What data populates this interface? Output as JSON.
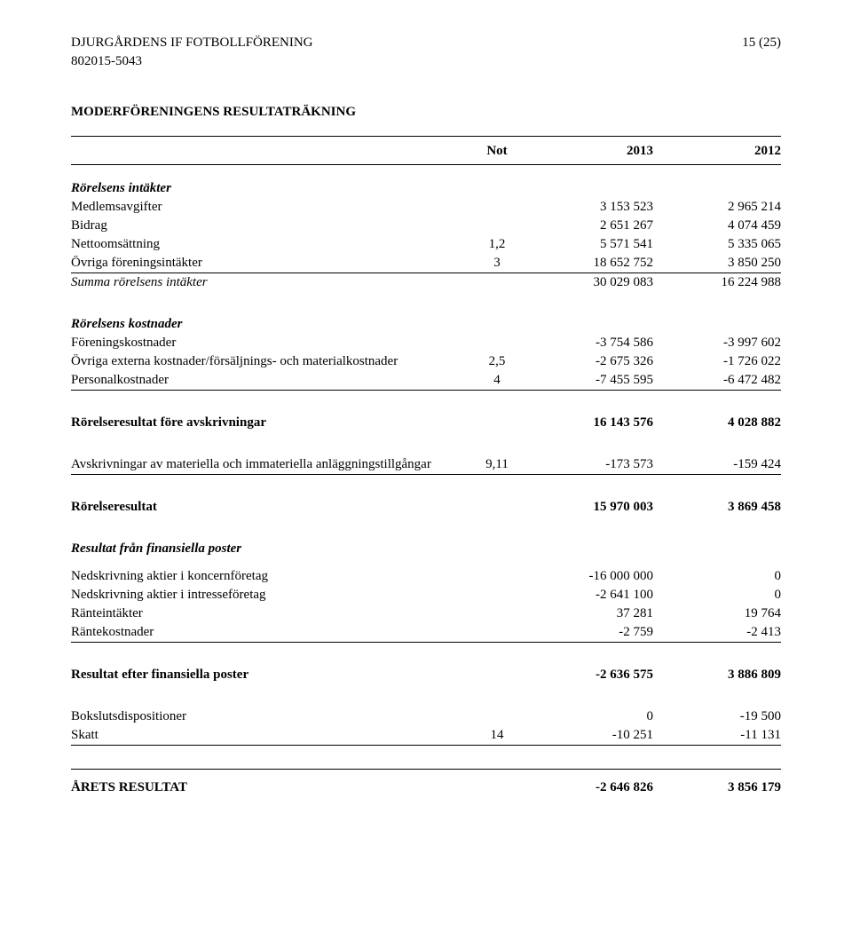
{
  "header": {
    "org_name": "DJURGÅRDENS IF FOTBOLLFÖRENING",
    "page_indicator": "15 (25)",
    "org_number": "802015-5043"
  },
  "title": "MODERFÖRENINGENS RESULTATRÄKNING",
  "column_headers": {
    "note": "Not",
    "year_a": "2013",
    "year_b": "2012"
  },
  "sections": [
    {
      "heading": "Rörelsens intäkter",
      "heading_style": "italic-bold",
      "rows": [
        {
          "label": "Medlemsavgifter",
          "note": "",
          "a": "3 153 523",
          "b": "2 965 214"
        },
        {
          "label": "Bidrag",
          "note": "",
          "a": "2 651 267",
          "b": "4 074 459"
        },
        {
          "label": "Nettoomsättning",
          "note": "1,2",
          "a": "5 571 541",
          "b": "5 335 065"
        },
        {
          "label": "Övriga föreningsintäkter",
          "note": "3",
          "a": "18 652 752",
          "b": "3 850 250",
          "rule_after": true
        }
      ],
      "summary": {
        "label": "Summa rörelsens intäkter",
        "label_style": "italic",
        "a": "30 029 083",
        "b": "16 224 988"
      }
    },
    {
      "heading": "Rörelsens kostnader",
      "heading_style": "italic-bold",
      "rows": [
        {
          "label": "Föreningskostnader",
          "note": "",
          "a": "-3 754 586",
          "b": "-3 997 602"
        },
        {
          "label": "Övriga externa kostnader/försäljnings- och materialkostnader",
          "note": "2,5",
          "a": "-2 675 326",
          "b": "-1 726 022"
        },
        {
          "label": "Personalkostnader",
          "note": "4",
          "a": "-7 455 595",
          "b": "-6 472 482",
          "rule_after": true
        }
      ]
    }
  ],
  "standalone": [
    {
      "label": "Rörelseresultat före avskrivningar",
      "style": "bold",
      "a": "16 143 576",
      "b": "4 028 882"
    },
    {
      "label": "Avskrivningar av materiella och immateriella anläggningstillgångar",
      "note": "9,11",
      "a": "-173 573",
      "b": "-159 424",
      "rule_after": true
    },
    {
      "label": "Rörelseresultat",
      "style": "bold",
      "a": "15 970 003",
      "b": "3 869 458"
    }
  ],
  "finansiella": {
    "heading": "Resultat från finansiella poster",
    "heading_style": "italic-bold",
    "rows": [
      {
        "label": "Nedskrivning aktier i koncernföretag",
        "a": "-16 000 000",
        "b": "0"
      },
      {
        "label": "Nedskrivning aktier i intresseföretag",
        "a": "-2 641 100",
        "b": "0"
      },
      {
        "label": "Ränteintäkter",
        "a": "37 281",
        "b": "19 764"
      },
      {
        "label": "Räntekostnader",
        "a": "-2 759",
        "b": "-2 413",
        "rule_after": true
      }
    ]
  },
  "post_fin": [
    {
      "label": "Resultat efter finansiella poster",
      "style": "bold",
      "a": "-2 636 575",
      "b": "3 886 809"
    }
  ],
  "disp": [
    {
      "label": "Bokslutsdispositioner",
      "a": "0",
      "b": "-19 500"
    },
    {
      "label": "Skatt",
      "note": "14",
      "a": "-10 251",
      "b": "-11 131",
      "rule_after": true
    }
  ],
  "result": {
    "label": "ÅRETS RESULTAT",
    "style": "bold",
    "a": "-2 646 826",
    "b": "3 856 179",
    "rule_before": true
  }
}
